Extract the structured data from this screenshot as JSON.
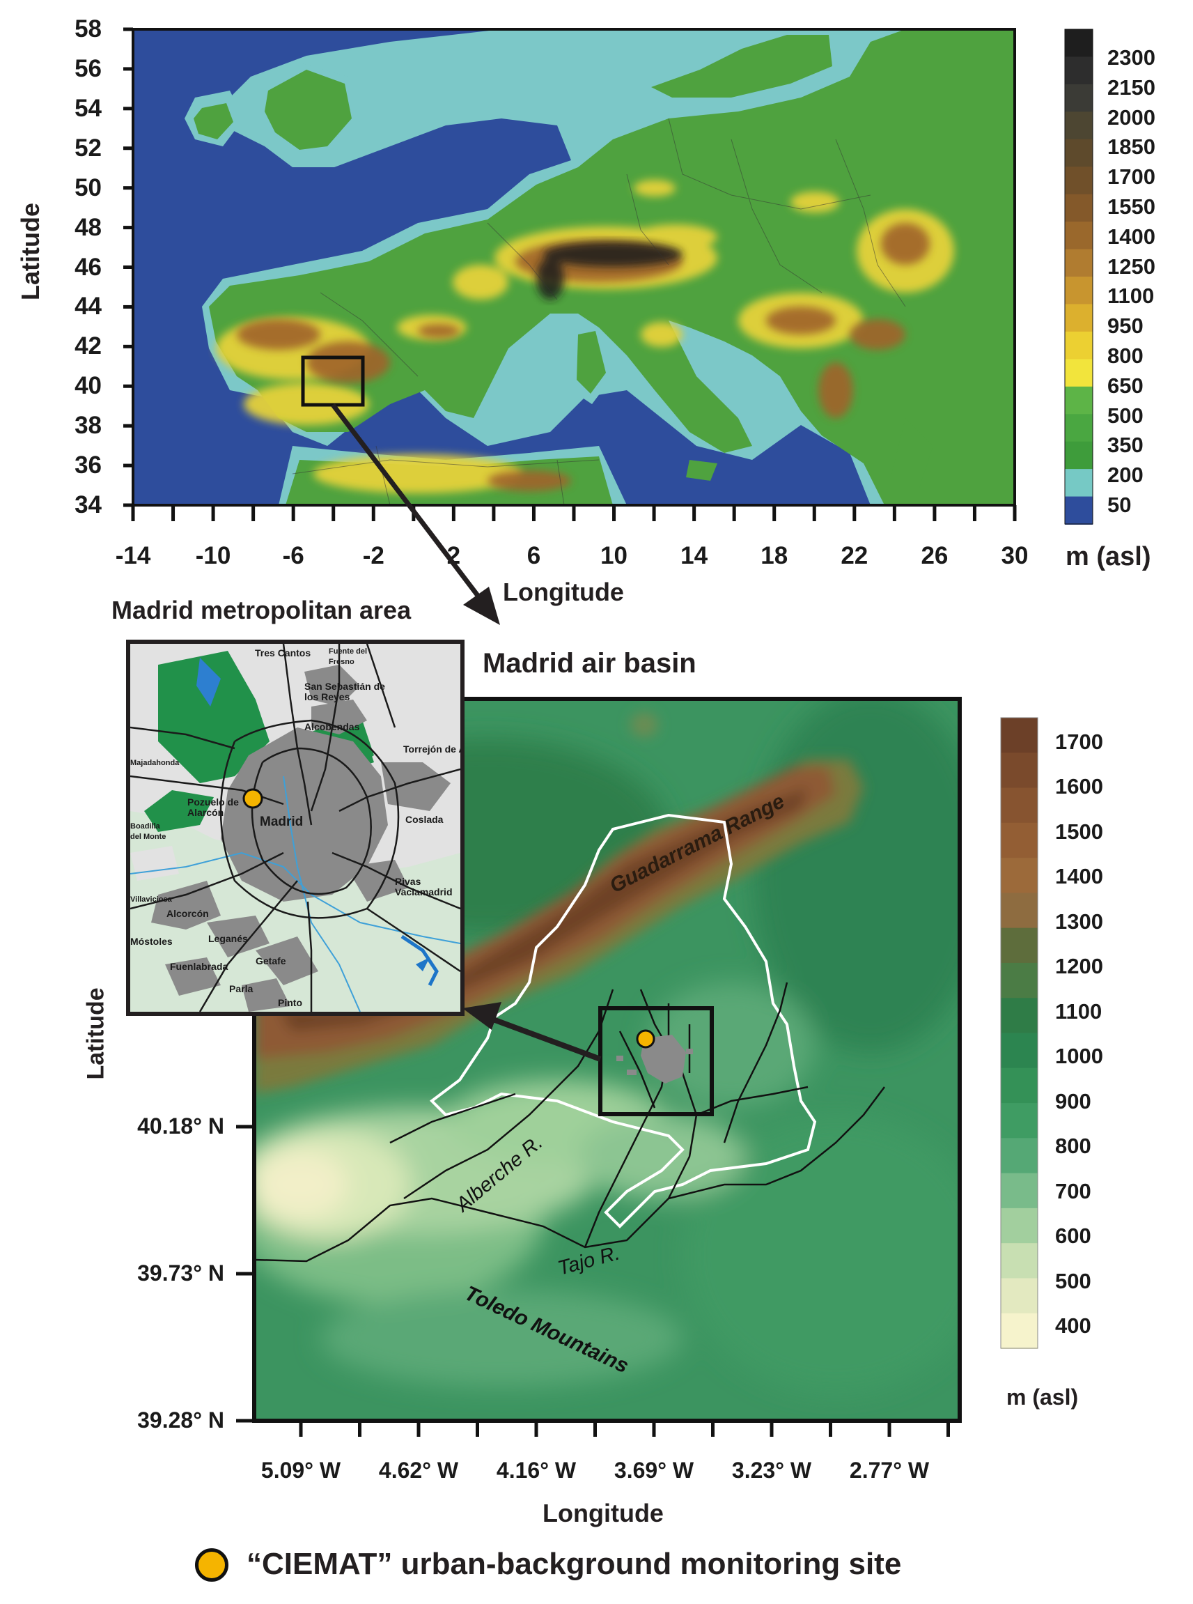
{
  "europe_map": {
    "ylabel": "Latitude",
    "xlabel": "Longitude",
    "y_ticks": [
      "58",
      "56",
      "54",
      "52",
      "50",
      "48",
      "46",
      "44",
      "42",
      "40",
      "38",
      "36",
      "34"
    ],
    "x_ticks": [
      "-14",
      "-10",
      "-6",
      "-2",
      "2",
      "6",
      "10",
      "14",
      "18",
      "22",
      "26",
      "30"
    ],
    "colorbar_ticks": [
      "2300",
      "2150",
      "2000",
      "1850",
      "1700",
      "1550",
      "1400",
      "1250",
      "1100",
      "950",
      "800",
      "650",
      "500",
      "350",
      "200",
      "50"
    ],
    "colorbar_unit": "m (asl)",
    "colors": {
      "sea": "#2e4d9c",
      "coast": "#7cc8c8",
      "low": "#4fa23f",
      "mid": "#e5d23a",
      "high": "#8a5a2b",
      "peak": "#1e1e1e"
    }
  },
  "inset": {
    "title": "Madrid metropolitan area",
    "places": [
      "Tres Cantos",
      "Fuente del Fresno",
      "San Sebastián de los Reyes",
      "Alcobendas",
      "Majadahonda",
      "Torrejón de Ardoz",
      "Pozuelo de Alarcón",
      "Madrid",
      "Boadilla del Monte",
      "Coslada",
      "Rivas Vaciamadrid",
      "Villaviciosa",
      "Alcorcón",
      "Móstoles",
      "Leganés",
      "Getafe",
      "Fuenlabrada",
      "Parla",
      "Pinto"
    ]
  },
  "basin_map": {
    "title": "Madrid air basin",
    "ylabel": "Latitude",
    "xlabel": "Longitude",
    "y_ticks": [
      "40.18° N",
      "39.73° N",
      "39.28° N"
    ],
    "x_ticks": [
      "5.09° W",
      "4.62° W",
      "4.16° W",
      "3.69° W",
      "3.23° W",
      "2.77° W"
    ],
    "labels": {
      "range": "Guadarrama Range",
      "river1": "Alberche R.",
      "river2": "Tajo R.",
      "mountains": "Toledo Mountains"
    },
    "colorbar_ticks": [
      "1700",
      "1600",
      "1500",
      "1400",
      "1300",
      "1200",
      "1100",
      "1000",
      "900",
      "800",
      "700",
      "600",
      "500",
      "400"
    ],
    "colorbar_unit": "m (asl)"
  },
  "legend": {
    "site_label": "“CIEMAT” urban-background monitoring site",
    "site_color": "#f5b400"
  }
}
